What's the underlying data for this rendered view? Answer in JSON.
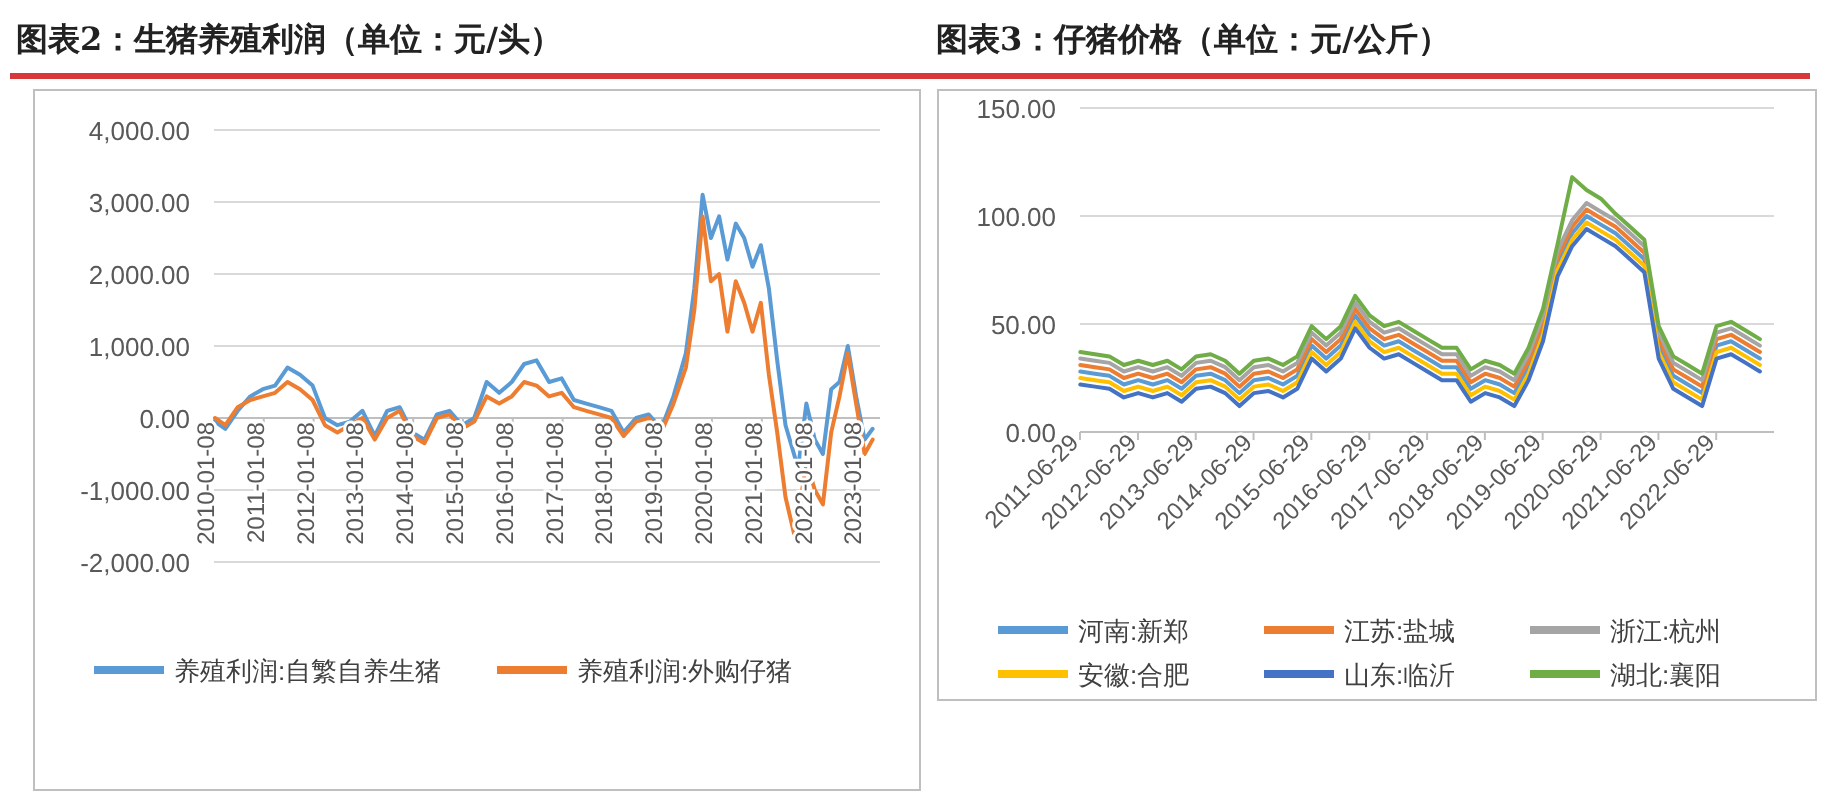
{
  "chart_data": [
    {
      "type": "line",
      "title": "图表2：生猪养殖利润（单位：元/头）",
      "grid": "y",
      "legend": "bottom",
      "x": [
        "2010-01-15",
        "2010-04",
        "2010-07",
        "2010-10",
        "2011-01",
        "2011-04",
        "2011-07",
        "2011-10",
        "2012-01",
        "2012-04",
        "2012-07",
        "2012-10",
        "2013-01",
        "2013-04",
        "2013-07",
        "2013-10",
        "2014-01",
        "2014-04",
        "2014-07",
        "2014-10",
        "2015-01",
        "2015-04",
        "2015-07",
        "2015-10",
        "2016-01",
        "2016-04",
        "2016-07",
        "2016-10",
        "2017-01",
        "2017-04",
        "2017-07",
        "2017-10",
        "2018-01",
        "2018-04",
        "2018-07",
        "2018-10",
        "2019-01",
        "2019-04",
        "2019-07",
        "2019-09",
        "2019-11",
        "2020-01",
        "2020-03",
        "2020-05",
        "2020-07",
        "2020-09",
        "2020-11",
        "2021-01",
        "2021-03",
        "2021-05",
        "2021-07",
        "2021-09",
        "2021-10",
        "2021-12",
        "2022-02",
        "2022-04",
        "2022-06",
        "2022-08",
        "2022-10",
        "2022-12",
        "2023-02",
        "2023-04"
      ],
      "xlim": [
        "2010-01-08",
        "2023-05-25"
      ],
      "xticks": [
        {
          "value": "2010-01-08",
          "label": "2010-01-08"
        },
        {
          "value": "2011-01-08",
          "label": "2011-01-08"
        },
        {
          "value": "2012-01-08",
          "label": "2012-01-08"
        },
        {
          "value": "2013-01-08",
          "label": "2013-01-08"
        },
        {
          "value": "2014-01-08",
          "label": "2014-01-08"
        },
        {
          "value": "2015-01-08",
          "label": "2015-01-08"
        },
        {
          "value": "2016-01-08",
          "label": "2016-01-08"
        },
        {
          "value": "2017-01-08",
          "label": "2017-01-08"
        },
        {
          "value": "2018-01-08",
          "label": "2018-01-08"
        },
        {
          "value": "2019-01-08",
          "label": "2019-01-08"
        },
        {
          "value": "2020-01-08",
          "label": "2020-01-08"
        },
        {
          "value": "2021-01-08",
          "label": "2021-01-08"
        },
        {
          "value": "2022-01-08",
          "label": "2022-01-08"
        },
        {
          "value": "2023-01-08",
          "label": "2023-01-08"
        }
      ],
      "ylim": [
        -2000,
        4000
      ],
      "yticks": [
        {
          "value": 4000,
          "label": "4,000.00"
        },
        {
          "value": 3000,
          "label": "3,000.00"
        },
        {
          "value": 2000,
          "label": "2,000.00"
        },
        {
          "value": 1000,
          "label": "1,000.00"
        },
        {
          "value": 0,
          "label": "0.00"
        },
        {
          "value": -1000,
          "label": "-1,000.00"
        },
        {
          "value": -2000,
          "label": "-2,000.00"
        }
      ],
      "series": [
        {
          "name": "养殖利润:自繁自养生猪",
          "color": "#5b9bd5",
          "values": [
            -50,
            -150,
            100,
            300,
            400,
            450,
            700,
            600,
            450,
            0,
            -100,
            -50,
            100,
            -250,
            100,
            150,
            -200,
            -300,
            50,
            100,
            -100,
            0,
            500,
            350,
            500,
            750,
            800,
            500,
            550,
            250,
            200,
            150,
            100,
            -200,
            0,
            50,
            -150,
            300,
            900,
            1800,
            3100,
            2500,
            2800,
            2200,
            2700,
            2500,
            2100,
            2400,
            1800,
            800,
            -100,
            -500,
            -700,
            200,
            -300,
            -500,
            400,
            500,
            1000,
            300,
            -300,
            -150
          ]
        },
        {
          "name": "养殖利润:外购仔猪",
          "color": "#ed7d31",
          "values": [
            0,
            -100,
            150,
            250,
            300,
            350,
            500,
            400,
            250,
            -100,
            -200,
            -100,
            0,
            -300,
            0,
            100,
            -250,
            -350,
            0,
            50,
            -150,
            -50,
            300,
            200,
            300,
            500,
            450,
            300,
            350,
            150,
            100,
            50,
            0,
            -250,
            -50,
            0,
            -200,
            200,
            700,
            1500,
            2800,
            1900,
            2000,
            1200,
            1900,
            1600,
            1200,
            1600,
            600,
            -200,
            -1100,
            -1600,
            -1400,
            -600,
            -1000,
            -1200,
            -200,
            300,
            900,
            200,
            -500,
            -300
          ]
        }
      ]
    },
    {
      "type": "line",
      "title": "图表3：仔猪价格（单位：元/公斤）",
      "grid": "y",
      "legend": "bottom",
      "x": [
        "2011-07",
        "2011-10",
        "2012-01",
        "2012-04",
        "2012-07",
        "2012-10",
        "2013-01",
        "2013-04",
        "2013-07",
        "2013-10",
        "2014-01",
        "2014-04",
        "2014-07",
        "2014-10",
        "2015-01",
        "2015-04",
        "2015-07",
        "2015-10",
        "2016-01",
        "2016-04",
        "2016-07",
        "2016-10",
        "2017-01",
        "2017-04",
        "2017-07",
        "2017-10",
        "2018-01",
        "2018-04",
        "2018-07",
        "2018-10",
        "2019-01",
        "2019-04",
        "2019-07",
        "2019-10",
        "2020-01",
        "2020-04",
        "2020-07",
        "2020-10",
        "2021-01",
        "2021-04",
        "2021-07",
        "2021-10",
        "2022-01",
        "2022-04",
        "2022-07",
        "2022-10",
        "2023-01",
        "2023-04"
      ],
      "xlim": [
        "2011-06-29",
        "2023-06-29"
      ],
      "xticks": [
        {
          "value": "2011-06-29",
          "label": "2011-06-29"
        },
        {
          "value": "2012-06-29",
          "label": "2012-06-29"
        },
        {
          "value": "2013-06-29",
          "label": "2013-06-29"
        },
        {
          "value": "2014-06-29",
          "label": "2014-06-29"
        },
        {
          "value": "2015-06-29",
          "label": "2015-06-29"
        },
        {
          "value": "2016-06-29",
          "label": "2016-06-29"
        },
        {
          "value": "2017-06-29",
          "label": "2017-06-29"
        },
        {
          "value": "2018-06-29",
          "label": "2018-06-29"
        },
        {
          "value": "2019-06-29",
          "label": "2019-06-29"
        },
        {
          "value": "2020-06-29",
          "label": "2020-06-29"
        },
        {
          "value": "2021-06-29",
          "label": "2021-06-29"
        },
        {
          "value": "2022-06-29",
          "label": "2022-06-29"
        }
      ],
      "ylim": [
        0,
        150
      ],
      "yticks": [
        {
          "value": 0,
          "label": "0.00"
        },
        {
          "value": 50,
          "label": "50.00"
        },
        {
          "value": 100,
          "label": "100.00"
        },
        {
          "value": 150,
          "label": "150.00"
        }
      ],
      "series": [
        {
          "name": "河南:新郑",
          "color": "#5b9bd5",
          "values": [
            28,
            27,
            26,
            22,
            24,
            22,
            24,
            20,
            26,
            27,
            24,
            18,
            24,
            25,
            22,
            26,
            40,
            34,
            40,
            54,
            45,
            40,
            42,
            38,
            34,
            30,
            30,
            20,
            24,
            22,
            18,
            30,
            48,
            78,
            92,
            100,
            96,
            92,
            86,
            80,
            40,
            26,
            22,
            18,
            40,
            42,
            38,
            34
          ]
        },
        {
          "name": "江苏:盐城",
          "color": "#ed7d31",
          "values": [
            31,
            30,
            29,
            25,
            27,
            25,
            27,
            23,
            29,
            30,
            27,
            21,
            27,
            28,
            25,
            29,
            43,
            37,
            43,
            57,
            48,
            43,
            45,
            41,
            37,
            33,
            33,
            23,
            27,
            25,
            21,
            33,
            51,
            81,
            95,
            103,
            99,
            95,
            89,
            83,
            43,
            29,
            25,
            21,
            43,
            45,
            41,
            37
          ]
        },
        {
          "name": "浙江:杭州",
          "color": "#a5a5a5",
          "values": [
            34,
            33,
            32,
            28,
            30,
            28,
            30,
            26,
            32,
            33,
            30,
            24,
            30,
            31,
            28,
            32,
            46,
            40,
            46,
            60,
            51,
            46,
            48,
            44,
            40,
            36,
            36,
            26,
            30,
            28,
            24,
            36,
            54,
            84,
            98,
            106,
            102,
            98,
            92,
            86,
            46,
            32,
            28,
            24,
            46,
            48,
            44,
            40
          ]
        },
        {
          "name": "安徽:合肥",
          "color": "#ffc000",
          "values": [
            25,
            24,
            23,
            19,
            21,
            19,
            21,
            17,
            23,
            24,
            21,
            15,
            21,
            22,
            19,
            23,
            37,
            31,
            37,
            51,
            42,
            37,
            39,
            35,
            31,
            27,
            27,
            17,
            21,
            19,
            15,
            27,
            45,
            75,
            89,
            97,
            93,
            89,
            83,
            77,
            37,
            23,
            19,
            15,
            37,
            39,
            35,
            31
          ]
        },
        {
          "name": "山东:临沂",
          "color": "#4472c4",
          "values": [
            22,
            21,
            20,
            16,
            18,
            16,
            18,
            14,
            20,
            21,
            18,
            12,
            18,
            19,
            16,
            20,
            34,
            28,
            34,
            48,
            39,
            34,
            36,
            32,
            28,
            24,
            24,
            14,
            18,
            16,
            12,
            24,
            42,
            72,
            86,
            94,
            90,
            86,
            80,
            74,
            34,
            20,
            16,
            12,
            34,
            36,
            32,
            28
          ]
        },
        {
          "name": "湖北:襄阳",
          "color": "#70ad47",
          "values": [
            37,
            36,
            35,
            31,
            33,
            31,
            33,
            29,
            35,
            36,
            33,
            27,
            33,
            34,
            31,
            35,
            49,
            43,
            49,
            63,
            54,
            49,
            51,
            47,
            43,
            39,
            39,
            29,
            33,
            31,
            27,
            39,
            57,
            87,
            118,
            112,
            108,
            101,
            95,
            89,
            49,
            35,
            31,
            27,
            49,
            51,
            47,
            43
          ]
        }
      ]
    }
  ]
}
